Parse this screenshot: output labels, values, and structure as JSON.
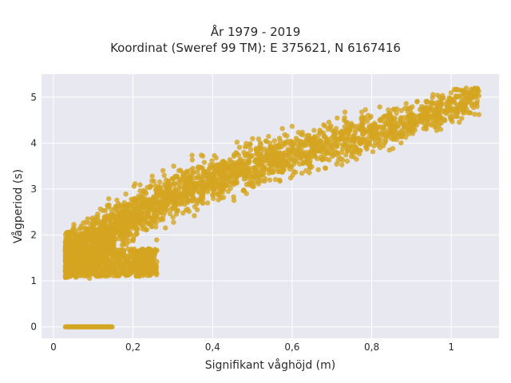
{
  "chart_data": {
    "type": "scatter",
    "title": "År 1979 - 2019",
    "subtitle": "Koordinat (Sweref 99 TM): E 375621, N 6167416",
    "xlabel": "Signifikant våghöjd (m)",
    "ylabel": "Vågperiod (s)",
    "xlim": [
      -0.03,
      1.12
    ],
    "ylim": [
      -0.25,
      5.5
    ],
    "x_ticks": [
      0,
      0.2,
      0.4,
      0.6,
      0.8,
      1
    ],
    "x_tick_labels": [
      "0",
      "0,2",
      "0,4",
      "0,6",
      "0,8",
      "1"
    ],
    "y_ticks": [
      0,
      1,
      2,
      3,
      4,
      5
    ],
    "y_tick_labels": [
      "0",
      "1",
      "2",
      "3",
      "4",
      "5"
    ],
    "grid": true,
    "marker_color": "#D4A520",
    "background_color": "#E8E8F0",
    "approximate_distribution": {
      "zero_period_band": {
        "x_range": [
          0.03,
          0.15
        ],
        "y": 0
      },
      "main_cloud_centerline": [
        {
          "x": 0.03,
          "y": 1.5
        },
        {
          "x": 0.1,
          "y": 1.8
        },
        {
          "x": 0.2,
          "y": 2.4
        },
        {
          "x": 0.3,
          "y": 2.9
        },
        {
          "x": 0.4,
          "y": 3.2
        },
        {
          "x": 0.5,
          "y": 3.5
        },
        {
          "x": 0.6,
          "y": 3.75
        },
        {
          "x": 0.7,
          "y": 4.0
        },
        {
          "x": 0.8,
          "y": 4.25
        },
        {
          "x": 0.9,
          "y": 4.5
        },
        {
          "x": 1.0,
          "y": 4.8
        },
        {
          "x": 1.07,
          "y": 5.05
        }
      ],
      "y_min_main": 1.05,
      "y_max": 5.2,
      "x_max": 1.07
    }
  }
}
